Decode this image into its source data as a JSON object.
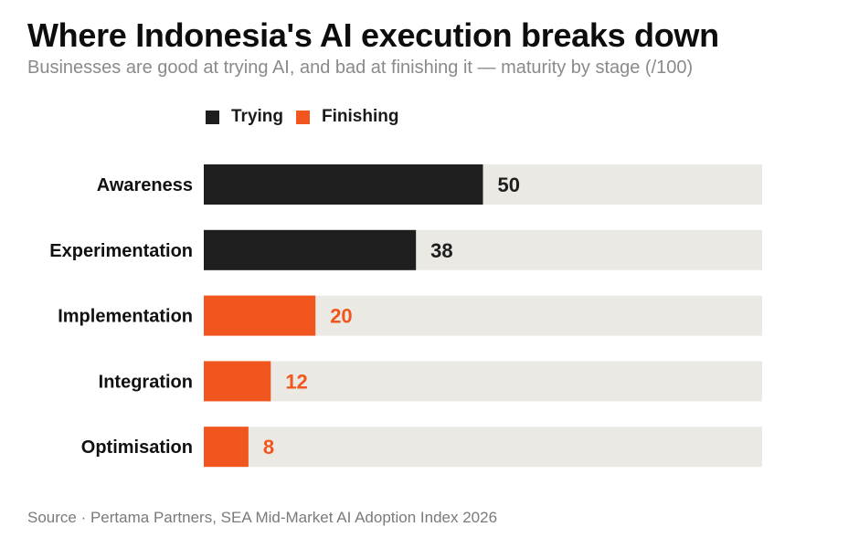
{
  "chart_data": {
    "type": "bar",
    "orientation": "horizontal",
    "title": "Where Indonesia's AI execution breaks down",
    "subtitle": "Businesses are good at trying AI, and bad at finishing it — maturity by stage (/100)",
    "categories": [
      "Awareness",
      "Experimentation",
      "Implementation",
      "Integration",
      "Optimisation"
    ],
    "values": [
      50,
      38,
      20,
      12,
      8
    ],
    "labels": [
      "50",
      "38",
      "20",
      "12",
      "8"
    ],
    "groups": [
      "Trying",
      "Trying",
      "Finishing",
      "Finishing",
      "Finishing"
    ],
    "legend": [
      {
        "name": "Trying",
        "color": "#1e1e1e"
      },
      {
        "name": "Finishing",
        "color": "#f0561d"
      }
    ],
    "xlim": [
      0,
      100
    ],
    "track_color": "#ebe9e4",
    "legend_position": "top-left",
    "grid": false,
    "xlabel": "",
    "ylabel": ""
  },
  "source": "Source · Pertama Partners, SEA Mid-Market AI Adoption Index 2026"
}
